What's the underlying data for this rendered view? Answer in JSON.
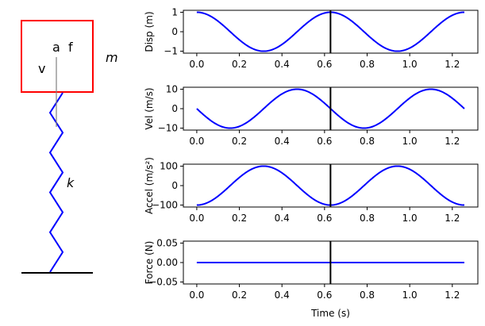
{
  "diagram": {
    "mass_label": "m",
    "spring_label": "k",
    "arrow_labels": {
      "v": "v",
      "a": "a",
      "f": "f"
    },
    "colors": {
      "mass_box": "#ff0000",
      "spring": "#0000ff",
      "ground": "#000000",
      "arrow": "#808080"
    }
  },
  "chart_data": [
    {
      "type": "line",
      "ylabel": "Disp (m)",
      "ylim": [
        -1.1,
        1.1
      ],
      "yticks": [
        -1,
        0,
        1
      ],
      "ytick_labels": [
        "−1",
        "0",
        "1"
      ],
      "series_formula": "cos(10 t)",
      "amplitude": 1,
      "phase": "cos",
      "color": "#0000ff"
    },
    {
      "type": "line",
      "ylabel": "Vel (m/s)",
      "ylim": [
        -11,
        11
      ],
      "yticks": [
        -10,
        0,
        10
      ],
      "ytick_labels": [
        "−10",
        "0",
        "10"
      ],
      "series_formula": "-10 sin(10 t)",
      "amplitude": -10,
      "phase": "sin",
      "color": "#0000ff"
    },
    {
      "type": "line",
      "ylabel": "Accel (m/s²)",
      "ylim": [
        -110,
        110
      ],
      "yticks": [
        -100,
        0,
        100
      ],
      "ytick_labels": [
        "−100",
        "0",
        "100"
      ],
      "series_formula": "-100 cos(10 t)",
      "amplitude": -100,
      "phase": "cos",
      "color": "#0000ff"
    },
    {
      "type": "line",
      "ylabel": "Force (N)",
      "xlabel": "Time (s)",
      "ylim": [
        -0.055,
        0.055
      ],
      "yticks": [
        -0.05,
        0,
        0.05
      ],
      "ytick_labels": [
        "−0.05",
        "0.00",
        "0.05"
      ],
      "series_formula": "0",
      "amplitude": 0,
      "phase": "cos",
      "color": "#0000ff"
    }
  ],
  "x_range": [
    0,
    1.2566
  ],
  "xlim": [
    -0.063,
    1.32
  ],
  "xticks": [
    0,
    0.2,
    0.4,
    0.6,
    0.8,
    1.0,
    1.2
  ],
  "xtick_labels": [
    "0.0",
    "0.2",
    "0.4",
    "0.6",
    "0.8",
    "1.0",
    "1.2"
  ],
  "cursor_time": 0.628
}
